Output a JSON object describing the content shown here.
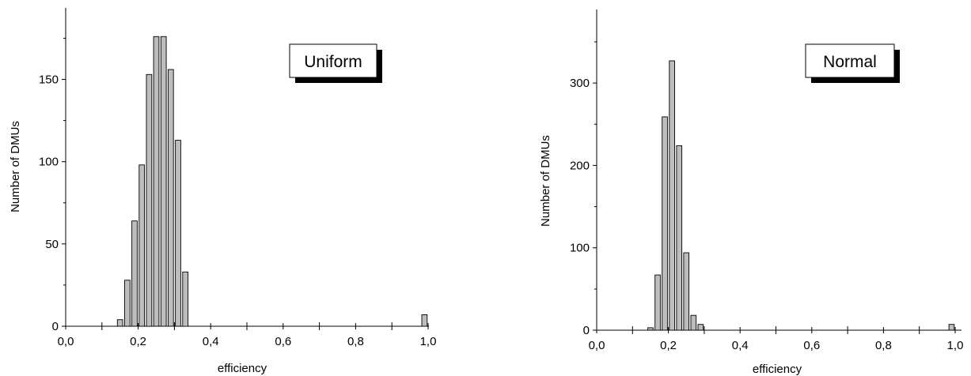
{
  "chart_data": [
    {
      "type": "bar",
      "legend_label": "Uniform",
      "legend_position": "top-right",
      "xlabel": "efficiency",
      "ylabel": "Number of DMUs",
      "xlim": [
        0.0,
        1.0
      ],
      "ylim": [
        0,
        180
      ],
      "x_ticks": [
        "0,0",
        "0,2",
        "0,4",
        "0,6",
        "0,8",
        "1,0"
      ],
      "y_ticks": [
        "0",
        "50",
        "100",
        "150"
      ],
      "y_tick_values": [
        0,
        50,
        100,
        150
      ],
      "bin_width": 0.02,
      "x": [
        0.15,
        0.17,
        0.19,
        0.21,
        0.23,
        0.25,
        0.27,
        0.29,
        0.31,
        0.33,
        0.99
      ],
      "values": [
        4,
        28,
        64,
        98,
        153,
        176,
        176,
        156,
        113,
        33,
        7
      ],
      "grid": false
    },
    {
      "type": "bar",
      "legend_label": "Normal",
      "legend_position": "top-right",
      "xlabel": "efficiency",
      "ylabel": "Number of DMUs",
      "xlim": [
        0.0,
        1.0
      ],
      "ylim": [
        0,
        350
      ],
      "x_ticks": [
        "0,0",
        "0,2",
        "0,4",
        "0,6",
        "0,8",
        "1,0"
      ],
      "y_ticks": [
        "0",
        "100",
        "200",
        "300"
      ],
      "y_tick_values": [
        0,
        100,
        200,
        300
      ],
      "bin_width": 0.02,
      "x": [
        0.15,
        0.17,
        0.19,
        0.21,
        0.23,
        0.25,
        0.27,
        0.29,
        0.99
      ],
      "values": [
        3,
        67,
        259,
        327,
        224,
        94,
        18,
        7,
        7
      ],
      "grid": false
    }
  ]
}
